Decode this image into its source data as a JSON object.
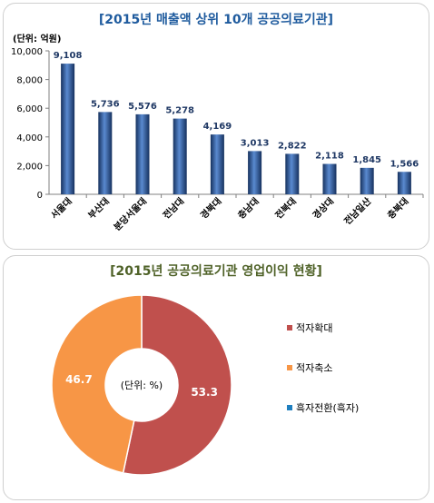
{
  "bar_panel": {
    "title": "[2015년 매출액 상위 10개 공공의료기관]",
    "unit_label": "(단위: 억원)"
  },
  "donut_panel": {
    "title": "[2015년 공공의료기관 영업이익 현황]",
    "center_label": "(단위: %)"
  },
  "colors": {
    "bar_dark": "#16315e",
    "bar_mid": "#2c5aa0",
    "bar_light": "#5a8ad0",
    "value_label": "#1f3864",
    "loss_growth": "#c0504d",
    "loss_reduced": "#f79646",
    "profit_turn": "#1f7fbf"
  },
  "chart_data": [
    {
      "type": "bar",
      "title": "[2015년 매출액 상위 10개 공공의료기관]",
      "ylabel": "(단위: 억원)",
      "ylim": [
        0,
        10000
      ],
      "yticks": [
        0,
        2000,
        4000,
        6000,
        8000,
        10000
      ],
      "ytick_labels": [
        "0",
        "2,000",
        "4,000",
        "6,000",
        "8,000",
        "10,000"
      ],
      "categories": [
        "서울대",
        "부산대",
        "분당서울대",
        "전남대",
        "경북대",
        "충남대",
        "전북대",
        "경상대",
        "전남일산",
        "충북대"
      ],
      "values": [
        9108,
        5736,
        5576,
        5278,
        4169,
        3013,
        2822,
        2118,
        1845,
        1566
      ],
      "value_labels": [
        "9,108",
        "5,736",
        "5,576",
        "5,278",
        "4,169",
        "3,013",
        "2,822",
        "2,118",
        "1,845",
        "1,566"
      ],
      "grid": false,
      "legend": "none"
    },
    {
      "type": "pie",
      "title": "[2015년 공공의료기관 영업이익 현황]",
      "center_label": "(단위: %)",
      "categories": [
        "적자확대",
        "적자축소",
        "흑자전환(흑자)"
      ],
      "values": [
        53.3,
        46.7,
        0
      ],
      "value_labels": [
        "53.3",
        "46.7",
        ""
      ],
      "legend": "right"
    }
  ]
}
